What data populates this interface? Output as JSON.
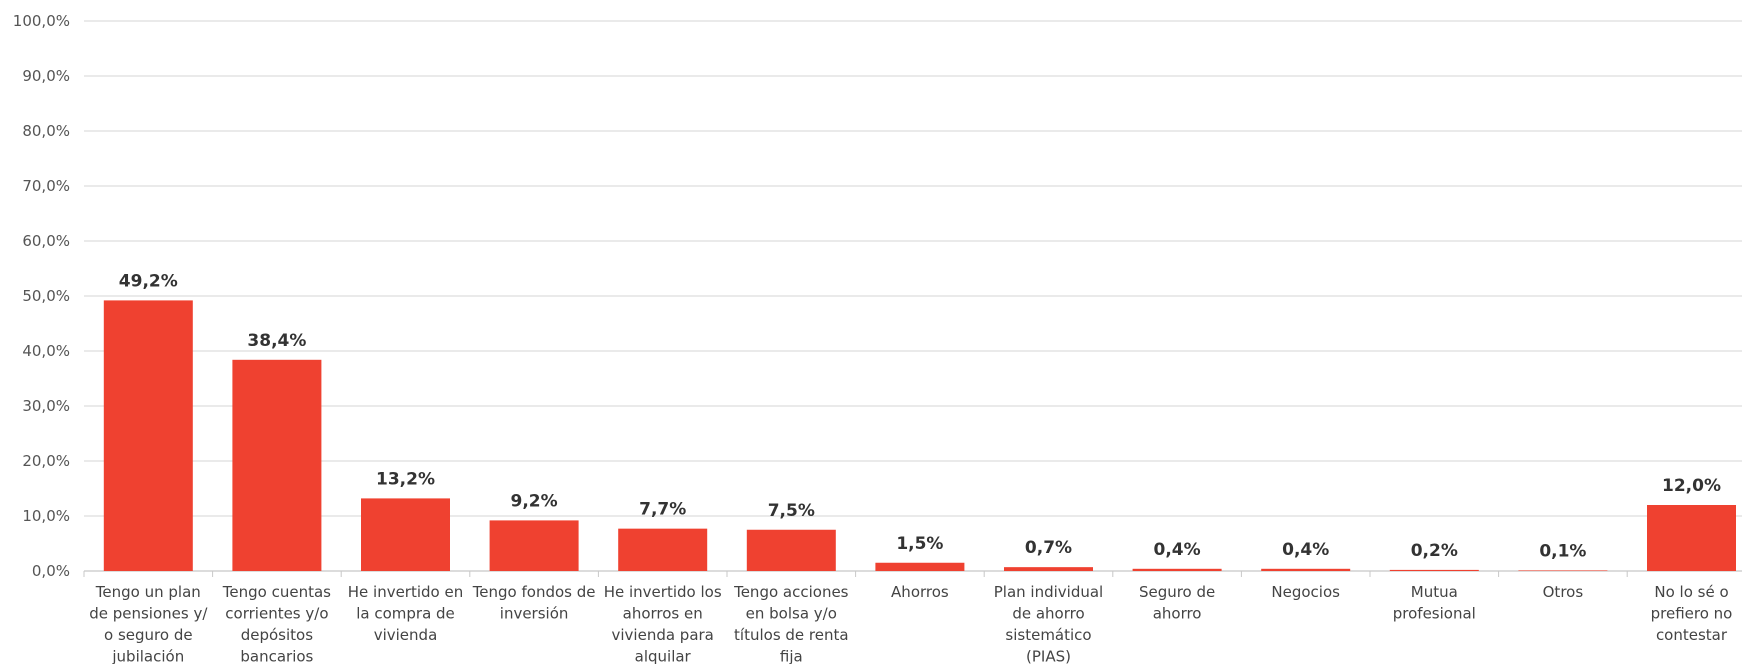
{
  "chart_data": {
    "type": "bar",
    "title": "",
    "xlabel": "",
    "ylabel": "",
    "ylim": [
      0,
      100
    ],
    "grid": true,
    "bar_color": "#ef4130",
    "categories": [
      "Tengo un plan de pensiones y/ o seguro de jubilación",
      "Tengo cuentas corrientes y/o depósitos bancarios",
      "He invertido en la compra de vivienda",
      "Tengo fondos de inversión",
      "He invertido los ahorros en vivienda para alquilar",
      "Tengo acciones en bolsa y/o títulos de renta fija",
      "Ahorros",
      "Plan individual de ahorro sistemático (PIAS)",
      "Seguro de ahorro",
      "Negocios",
      "Mutua profesional",
      "Otros",
      "No lo sé o prefiero no contestar"
    ],
    "category_lines": [
      [
        "Tengo un plan",
        "de pensiones  y/",
        "o seguro de",
        "jubilación"
      ],
      [
        "Tengo cuentas",
        "corrientes y/o",
        "depósitos",
        "bancarios"
      ],
      [
        "He invertido en",
        "la compra de",
        "vivienda"
      ],
      [
        "Tengo fondos de",
        "inversión"
      ],
      [
        "He invertido los",
        "ahorros en",
        "vivienda para",
        "alquilar"
      ],
      [
        "Tengo acciones",
        "en bolsa y/o",
        "títulos de renta",
        "fija"
      ],
      [
        "Ahorros"
      ],
      [
        "Plan individual",
        "de ahorro",
        "sistemático",
        "(PIAS)"
      ],
      [
        "Seguro de",
        "ahorro"
      ],
      [
        "Negocios"
      ],
      [
        "Mutua",
        "profesional"
      ],
      [
        "Otros"
      ],
      [
        "No lo sé o",
        "prefiero no",
        "contestar"
      ]
    ],
    "values": [
      49.2,
      38.4,
      13.2,
      9.2,
      7.7,
      7.5,
      1.5,
      0.7,
      0.4,
      0.4,
      0.2,
      0.1,
      12.0
    ],
    "data_labels": [
      "49,2%",
      "38,4%",
      "13,2%",
      "9,2%",
      "7,7%",
      "7,5%",
      "1,5%",
      "0,7%",
      "0,4%",
      "0,4%",
      "0,2%",
      "0,1%",
      "12,0%"
    ],
    "y_ticks": [
      0,
      10,
      20,
      30,
      40,
      50,
      60,
      70,
      80,
      90,
      100
    ],
    "y_tick_labels": [
      "0,0%",
      "10,0%",
      "20,0%",
      "30,0%",
      "40,0%",
      "50,0%",
      "60,0%",
      "70,0%",
      "80,0%",
      "90,0%",
      "100,0%"
    ]
  }
}
